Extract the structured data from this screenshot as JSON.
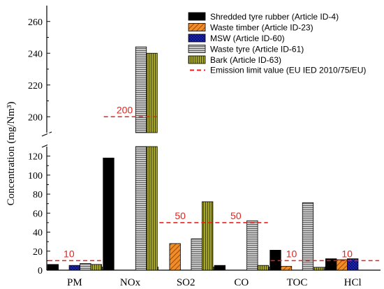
{
  "chart_data": {
    "type": "bar",
    "ylabel": "Concentration (mg/Nm³)",
    "categories": [
      "PM",
      "NOx",
      "SO2",
      "CO",
      "TOC",
      "HCl"
    ],
    "axis_break": {
      "lower_range": [
        0,
        130
      ],
      "upper_range": [
        190,
        270
      ]
    },
    "y_ticks_lower": [
      0,
      20,
      40,
      60,
      80,
      100,
      120
    ],
    "y_ticks_upper": [
      200,
      220,
      240,
      260
    ],
    "series": [
      {
        "name": "Shredded tyre rubber (Article ID-4)",
        "pattern": "solid-black",
        "color": "#000000",
        "values": [
          6,
          118,
          null,
          5,
          21,
          12
        ]
      },
      {
        "name": "Waste timber (Article ID-23)",
        "pattern": "orange-diagonal",
        "color": "#f28c28",
        "values": [
          null,
          null,
          28,
          null,
          4,
          11
        ]
      },
      {
        "name": "MSW (Article ID-60)",
        "pattern": "blue-crosshatch",
        "color": "#1f2ec2",
        "values": [
          5,
          null,
          null,
          null,
          null,
          12
        ]
      },
      {
        "name": "Waste tyre (Article ID-61)",
        "pattern": "grey-horizontal",
        "color": "#a8a8a8",
        "values": [
          7,
          244,
          33,
          52,
          71,
          null
        ]
      },
      {
        "name": "Bark (Article ID-63)",
        "pattern": "olive-vertical",
        "color": "#8f8f1e",
        "values": [
          6,
          240,
          72,
          5,
          3,
          null
        ]
      }
    ],
    "limit_label": "Emission limit value (EU IED 2010/75/EU)",
    "limits": [
      {
        "categories": [
          0
        ],
        "value": 10,
        "label": "10"
      },
      {
        "categories": [
          1
        ],
        "value": 200,
        "label": "200"
      },
      {
        "categories": [
          2,
          3
        ],
        "value": 50,
        "label_positions": [
          2,
          3
        ],
        "labels": [
          "50",
          "50"
        ]
      },
      {
        "categories": [
          4,
          5
        ],
        "value": 10,
        "label_positions": [
          4,
          5
        ],
        "labels": [
          "10",
          "10"
        ]
      }
    ],
    "limit_color": "#e8211c",
    "grid": false,
    "legend_position": "top-right"
  }
}
